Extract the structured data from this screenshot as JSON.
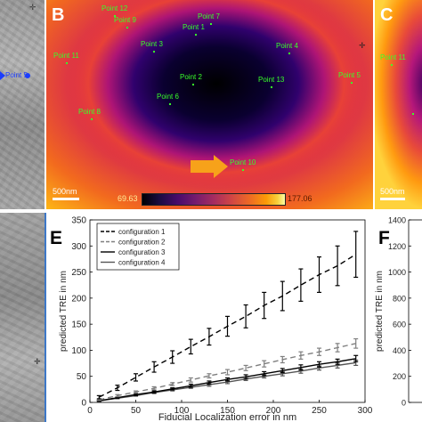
{
  "panels": {
    "a": {
      "point_label": "Point 5"
    },
    "b": {
      "letter": "B",
      "points": [
        {
          "id": "p12",
          "label": "Point 12"
        },
        {
          "id": "p9",
          "label": "Point 9"
        },
        {
          "id": "p7",
          "label": "Point 7"
        },
        {
          "id": "p1",
          "label": "Point 1"
        },
        {
          "id": "p3",
          "label": "Point 3"
        },
        {
          "id": "p11",
          "label": "Point 11"
        },
        {
          "id": "p4",
          "label": "Point 4"
        },
        {
          "id": "p5",
          "label": "Point 5"
        },
        {
          "id": "p2",
          "label": "Point 2"
        },
        {
          "id": "p13",
          "label": "Point 13"
        },
        {
          "id": "p6",
          "label": "Point 6"
        },
        {
          "id": "p8",
          "label": "Point 8"
        },
        {
          "id": "p10",
          "label": "Point 10"
        }
      ],
      "scalebar": "500nm",
      "colorbar_min": "69.63",
      "colorbar_max": "177.06"
    },
    "c": {
      "letter": "C",
      "point_label": "Point 11",
      "scalebar": "500nm"
    },
    "e": {
      "letter": "E"
    },
    "f": {
      "letter": "F"
    }
  },
  "chart_data": [
    {
      "panel": "E",
      "type": "line",
      "xlabel": "Fiducial Localization error in nm",
      "ylabel": "predicted TRE in nm",
      "xlim": [
        0,
        300
      ],
      "ylim": [
        0,
        350
      ],
      "xticks": [
        "0",
        "50",
        "100",
        "150",
        "200",
        "250",
        "300"
      ],
      "yticks": [
        "0",
        "50",
        "100",
        "150",
        "200",
        "250",
        "300",
        "350"
      ],
      "x": [
        10,
        30,
        50,
        70,
        90,
        110,
        130,
        150,
        170,
        190,
        210,
        230,
        250,
        270,
        290
      ],
      "series": [
        {
          "name": "configuration 1",
          "style": "dashed",
          "color": "#000000",
          "values": [
            10,
            28,
            48,
            68,
            87,
            107,
            126,
            146,
            165,
            186,
            204,
            225,
            245,
            262,
            284
          ],
          "errors": [
            3,
            5,
            7,
            10,
            12,
            14,
            16,
            19,
            22,
            25,
            28,
            31,
            34,
            38,
            44
          ]
        },
        {
          "name": "configuration 2",
          "style": "dashed",
          "color": "#7f7f7f",
          "values": [
            5,
            13,
            20,
            27,
            35,
            43,
            51,
            58,
            66,
            74,
            82,
            90,
            97,
            105,
            113
          ],
          "errors": [
            1,
            2,
            2,
            3,
            3,
            4,
            4,
            5,
            5,
            6,
            6,
            7,
            7,
            8,
            9
          ]
        },
        {
          "name": "configuration 3",
          "style": "solid",
          "color": "#000000",
          "values": [
            3,
            9,
            15,
            20,
            26,
            32,
            38,
            44,
            49,
            55,
            61,
            67,
            73,
            78,
            84
          ],
          "errors": [
            1,
            1,
            2,
            2,
            2,
            3,
            3,
            3,
            4,
            4,
            4,
            5,
            5,
            5,
            6
          ]
        },
        {
          "name": "configuration 4",
          "style": "solid",
          "color": "#555555",
          "values": [
            3,
            8,
            13,
            19,
            24,
            29,
            34,
            39,
            45,
            50,
            55,
            60,
            66,
            71,
            76
          ],
          "errors": [
            1,
            1,
            1,
            2,
            2,
            2,
            3,
            3,
            3,
            3,
            4,
            4,
            4,
            5,
            5
          ]
        }
      ]
    },
    {
      "panel": "F",
      "type": "line",
      "ylabel": "predicted TRE in nm",
      "ylim": [
        0,
        1400
      ],
      "yticks": [
        "0",
        "200",
        "400",
        "600",
        "800",
        "1000",
        "1200",
        "1400"
      ]
    }
  ]
}
